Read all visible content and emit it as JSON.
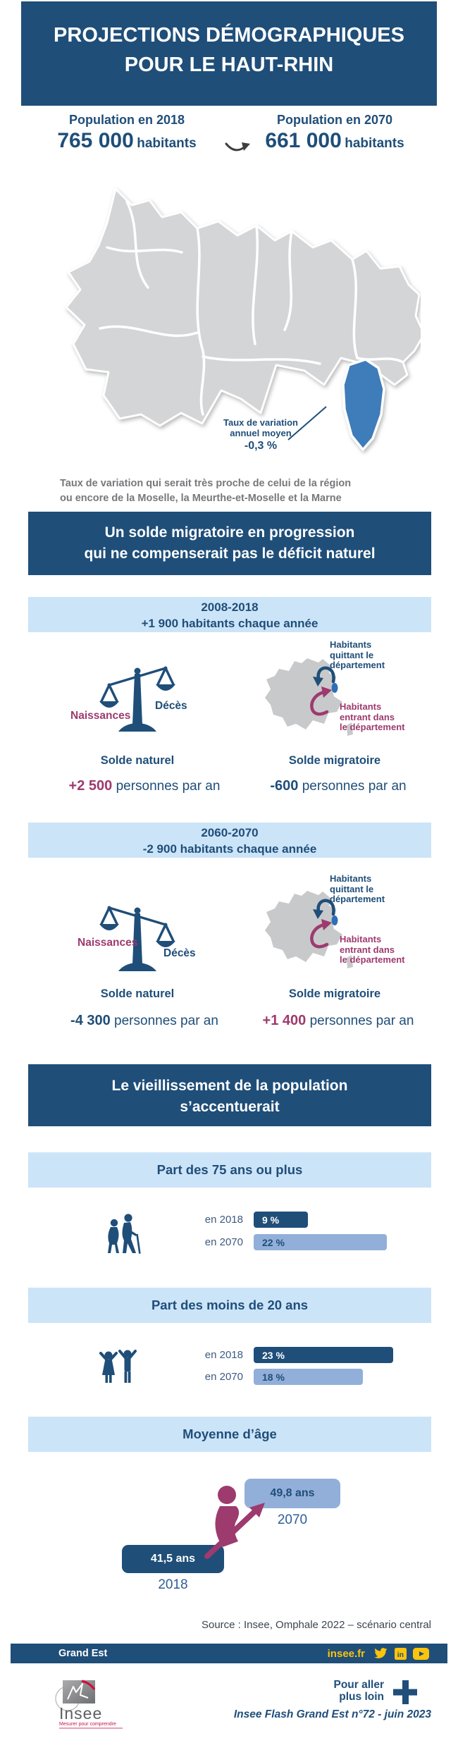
{
  "colors": {
    "navy": "#1f4e79",
    "light_blue_banner": "#cce4f8",
    "periwinkle": "#92afd9",
    "magenta": "#9d3a6e",
    "haut_rhin_blue": "#3e7cba",
    "map_gray": "#d4d5d7",
    "gold": "#fcc40c"
  },
  "header": {
    "line1": "PROJECTIONS DÉMOGRAPHIQUES",
    "line2": "POUR LE HAUT-RHIN"
  },
  "population": {
    "from": {
      "label": "Population en 2018",
      "value": "765 000",
      "unit": "habitants"
    },
    "to": {
      "label": "Population en 2070",
      "value": "661 000",
      "unit": "habitants"
    }
  },
  "map_section": {
    "callout": {
      "line1": "Taux de variation",
      "line2": "annuel moyen",
      "value": "-0,3 %"
    },
    "note_line1": "Taux de variation qui serait très proche de celui de la région",
    "note_line2": "ou encore de la Moselle, la Meurthe-et-Moselle et la Marne"
  },
  "migration": {
    "title_line1": "Un solde migratoire en progression",
    "title_line2": "qui ne compenserait pas le déficit naturel",
    "periods": [
      {
        "period": "2008-2018",
        "change": "+1 900 habitants chaque année",
        "left_label": "Naissances",
        "right_label": "Décès",
        "natural": {
          "label": "Solde naturel",
          "value": "+2 500",
          "suffix": "personnes par an",
          "value_color": "#9d3a6e"
        },
        "map_labels": {
          "leaving": [
            "Habitants",
            "quittant le",
            "département"
          ],
          "entering": [
            "Habitants",
            "entrant dans",
            "le département"
          ]
        },
        "migratory": {
          "label": "Solde migratoire",
          "value": "-600",
          "suffix": "personnes par an",
          "value_color": "#1f4e79"
        }
      },
      {
        "period": "2060-2070",
        "change": "-2 900 habitants chaque année",
        "left_label": "Naissances",
        "right_label": "Décès",
        "natural": {
          "label": "Solde naturel",
          "value": "-4 300",
          "suffix": "personnes par an",
          "value_color": "#1f4e79"
        },
        "map_labels": {
          "leaving": [
            "Habitants",
            "quittant le",
            "département"
          ],
          "entering": [
            "Habitants",
            "entrant dans",
            "le département"
          ]
        },
        "migratory": {
          "label": "Solde migratoire",
          "value": "+1 400",
          "suffix": "personnes par an",
          "value_color": "#9d3a6e"
        }
      }
    ]
  },
  "aging": {
    "title_line1": "Le vieillissement de la population",
    "title_line2": "s’accentuerait",
    "charts": [
      {
        "banner": "Part des 75 ans ou plus",
        "rows": [
          {
            "label": "en 2018",
            "display": "9 %"
          },
          {
            "label": "en 2070",
            "display": "22 %"
          }
        ]
      },
      {
        "banner": "Part des moins de 20 ans",
        "rows": [
          {
            "label": "en 2018",
            "display": "23 %"
          },
          {
            "label": "en 2070",
            "display": "18 %"
          }
        ]
      }
    ],
    "average": {
      "banner": "Moyenne d’âge",
      "low": {
        "value": "41,5 ans",
        "year": "2018"
      },
      "high": {
        "value": "49,8 ans",
        "year": "2070"
      }
    }
  },
  "source": "Source :  Insee, Omphale 2022 – scénario central",
  "footer": {
    "region": "Grand Est",
    "site": "insee.fr",
    "linkedin_text": "in",
    "more_line1": "Pour aller",
    "more_line2": "plus loin",
    "publication": "Insee Flash Grand Est n°72 - juin 2023",
    "logo_name": "Insee",
    "logo_tagline": "Mesurer pour comprendre"
  },
  "chart_data": [
    {
      "type": "bar",
      "title": "Part des 75 ans ou plus",
      "unit": "%",
      "categories": [
        "en 2018",
        "en 2070"
      ],
      "values": [
        9,
        22
      ]
    },
    {
      "type": "bar",
      "title": "Part des moins de 20 ans",
      "unit": "%",
      "categories": [
        "en 2018",
        "en 2070"
      ],
      "values": [
        23,
        18
      ]
    },
    {
      "type": "bar",
      "title": "Moyenne d’âge",
      "unit": "ans",
      "categories": [
        "2018",
        "2070"
      ],
      "values": [
        41.5,
        49.8
      ]
    },
    {
      "type": "table",
      "title": "Population du Haut-Rhin",
      "unit": "habitants",
      "categories": [
        "2018",
        "2070"
      ],
      "values": [
        765000,
        661000
      ]
    },
    {
      "type": "table",
      "title": "Évolution annuelle du nombre d’habitants",
      "unit": "habitants par an",
      "categories": [
        "2008-2018",
        "2060-2070"
      ],
      "values": [
        1900,
        -2900
      ]
    },
    {
      "type": "table",
      "title": "Solde naturel",
      "unit": "personnes par an",
      "categories": [
        "2008-2018",
        "2060-2070"
      ],
      "values": [
        2500,
        -4300
      ]
    },
    {
      "type": "table",
      "title": "Solde migratoire",
      "unit": "personnes par an",
      "categories": [
        "2008-2018",
        "2060-2070"
      ],
      "values": [
        -600,
        1400
      ]
    },
    {
      "type": "table",
      "title": "Taux de variation annuel moyen",
      "unit": "%",
      "categories": [
        "Haut-Rhin 2018-2070"
      ],
      "values": [
        -0.3
      ]
    }
  ]
}
